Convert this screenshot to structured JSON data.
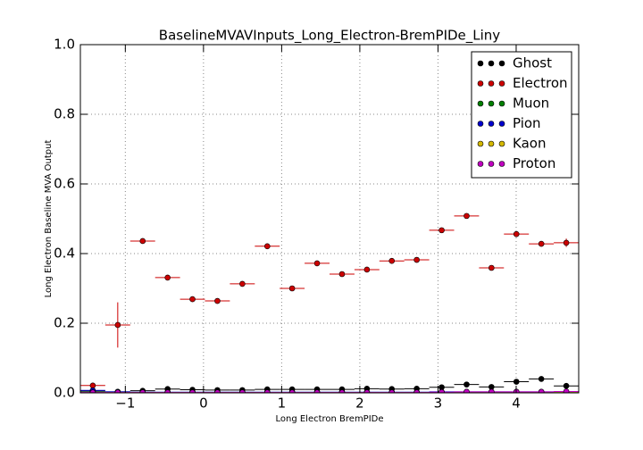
{
  "chart_data": {
    "type": "errorbar-scatter",
    "title": "BaselineMVAVInputs_Long_Electron-BremPIDe_Liny",
    "x_label": "Long Electron BremPIDe",
    "y_label": "Long Electron Baseline MVA Output",
    "xlim": [
      -1.575,
      4.8
    ],
    "ylim": [
      0,
      1
    ],
    "xticks": [
      {
        "value": -1,
        "label": "−1"
      },
      0,
      1,
      2,
      3,
      4
    ],
    "yticks": [
      {
        "value": 0,
        "label": "0.0"
      },
      {
        "value": 0.2,
        "label": "0.2"
      },
      {
        "value": 0.4,
        "label": "0.4"
      },
      {
        "value": 0.6,
        "label": "0.6"
      },
      {
        "value": 0.8,
        "label": "0.8"
      },
      {
        "value": 1,
        "label": "1.0"
      }
    ],
    "grid": true,
    "legend": "upper right",
    "x": [
      -1.416,
      -1.097,
      -0.778,
      -0.459,
      -0.141,
      0.178,
      0.497,
      0.816,
      1.134,
      1.453,
      1.772,
      2.091,
      2.409,
      2.728,
      3.047,
      3.366,
      3.684,
      4.003,
      4.322,
      4.641
    ],
    "series": [
      {
        "name": "Ghost",
        "color": "#000000",
        "values": [
          0.005,
          0.003,
          0.006,
          0.011,
          0.009,
          0.008,
          0.008,
          0.01,
          0.01,
          0.01,
          0.01,
          0.012,
          0.011,
          0.012,
          0.016,
          0.024,
          0.017,
          0.032,
          0.04,
          0.02
        ],
        "errors": [
          0.002,
          0.001,
          0.001,
          0.001,
          0.001,
          0.001,
          0.001,
          0.001,
          0.001,
          0.001,
          0.001,
          0.001,
          0.001,
          0.001,
          0.002,
          0.002,
          0.002,
          0.002,
          0.002,
          0.002
        ]
      },
      {
        "name": "Electron",
        "color": "#cc0000",
        "values": [
          0.021,
          0.195,
          0.436,
          0.331,
          0.269,
          0.264,
          0.313,
          0.421,
          0.3,
          0.372,
          0.341,
          0.354,
          0.379,
          0.382,
          0.467,
          0.508,
          0.359,
          0.456,
          0.428,
          0.431
        ],
        "errors": [
          0.004,
          0.065,
          0.004,
          0.003,
          0.003,
          0.003,
          0.003,
          0.003,
          0.003,
          0.003,
          0.003,
          0.003,
          0.003,
          0.003,
          0.004,
          0.005,
          0.004,
          0.004,
          0.005,
          0.012
        ]
      },
      {
        "name": "Muon",
        "color": "#007f00",
        "values": [
          0.002,
          0.001,
          0.001,
          0.001,
          0.001,
          0.001,
          0.001,
          0.001,
          0.001,
          0.001,
          0.001,
          0.001,
          0.001,
          0.001,
          0.001,
          0.002,
          0.002,
          0.002,
          0.002,
          0.002
        ],
        "errors": [
          0.001,
          0.001,
          0.001,
          0.001,
          0.001,
          0.001,
          0.001,
          0.001,
          0.001,
          0.001,
          0.001,
          0.001,
          0.001,
          0.001,
          0.001,
          0.001,
          0.001,
          0.001,
          0.001,
          0.001
        ]
      },
      {
        "name": "Pion",
        "color": "#0000cc",
        "values": [
          0.007,
          0.003,
          0.002,
          0.002,
          0.002,
          0.002,
          0.002,
          0.002,
          0.002,
          0.002,
          0.002,
          0.002,
          0.002,
          0.002,
          0.003,
          0.003,
          0.003,
          0.003,
          0.003,
          0.003
        ],
        "errors": [
          0.001,
          0.001,
          0.001,
          0.001,
          0.001,
          0.001,
          0.001,
          0.001,
          0.001,
          0.001,
          0.001,
          0.001,
          0.001,
          0.001,
          0.001,
          0.001,
          0.001,
          0.001,
          0.001,
          0.001
        ]
      },
      {
        "name": "Kaon",
        "color": "#d4b800",
        "values": [
          0.001,
          0.001,
          0.001,
          0.001,
          0.001,
          0.001,
          0.001,
          0.001,
          0.001,
          0.001,
          0.001,
          0.001,
          0.001,
          0.001,
          0.001,
          0.001,
          0.001,
          0.001,
          0.001,
          0.001
        ],
        "errors": [
          0.001,
          0.001,
          0.001,
          0.001,
          0.001,
          0.001,
          0.001,
          0.001,
          0.001,
          0.001,
          0.001,
          0.001,
          0.001,
          0.001,
          0.001,
          0.001,
          0.001,
          0.001,
          0.001,
          0.001
        ]
      },
      {
        "name": "Proton",
        "color": "#bf00bf",
        "values": [
          0.001,
          0.001,
          0.001,
          0.001,
          0.001,
          0.001,
          0.001,
          0.001,
          0.001,
          0.001,
          0.001,
          0.001,
          0.001,
          0.001,
          0.002,
          0.003,
          0.003,
          0.003,
          0.003,
          0.004
        ],
        "errors": [
          0.001,
          0.001,
          0.001,
          0.001,
          0.001,
          0.001,
          0.001,
          0.001,
          0.001,
          0.001,
          0.001,
          0.001,
          0.001,
          0.001,
          0.001,
          0.001,
          0.001,
          0.001,
          0.001,
          0.001
        ]
      }
    ]
  }
}
